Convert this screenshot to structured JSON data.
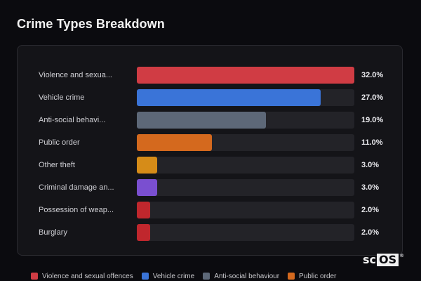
{
  "header": {
    "title": "Crime Types Breakdown"
  },
  "chart_data": {
    "type": "bar",
    "orientation": "horizontal",
    "categories": [
      "Violence and sexua...",
      "Vehicle crime",
      "Anti-social behavi...",
      "Public order",
      "Other theft",
      "Criminal damage an...",
      "Possession of weap...",
      "Burglary"
    ],
    "values": [
      32.0,
      27.0,
      19.0,
      11.0,
      3.0,
      3.0,
      2.0,
      2.0
    ],
    "value_labels": [
      "32.0%",
      "27.0%",
      "19.0%",
      "11.0%",
      "3.0%",
      "3.0%",
      "2.0%",
      "2.0%"
    ],
    "colors": [
      "#d03c44",
      "#3a74d8",
      "#5d6878",
      "#d4691e",
      "#d68c18",
      "#7a4fd0",
      "#c0272d",
      "#c0272d"
    ],
    "max": 32.0
  },
  "legend": {
    "items": [
      {
        "label": "Violence and sexual offences",
        "color": "#d03c44"
      },
      {
        "label": "Vehicle crime",
        "color": "#3a74d8"
      },
      {
        "label": "Anti-social behaviour",
        "color": "#5d6878"
      },
      {
        "label": "Public order",
        "color": "#d4691e"
      }
    ]
  },
  "logo": {
    "text_prefix": "sc",
    "text_box": "OS",
    "mark": "®"
  }
}
